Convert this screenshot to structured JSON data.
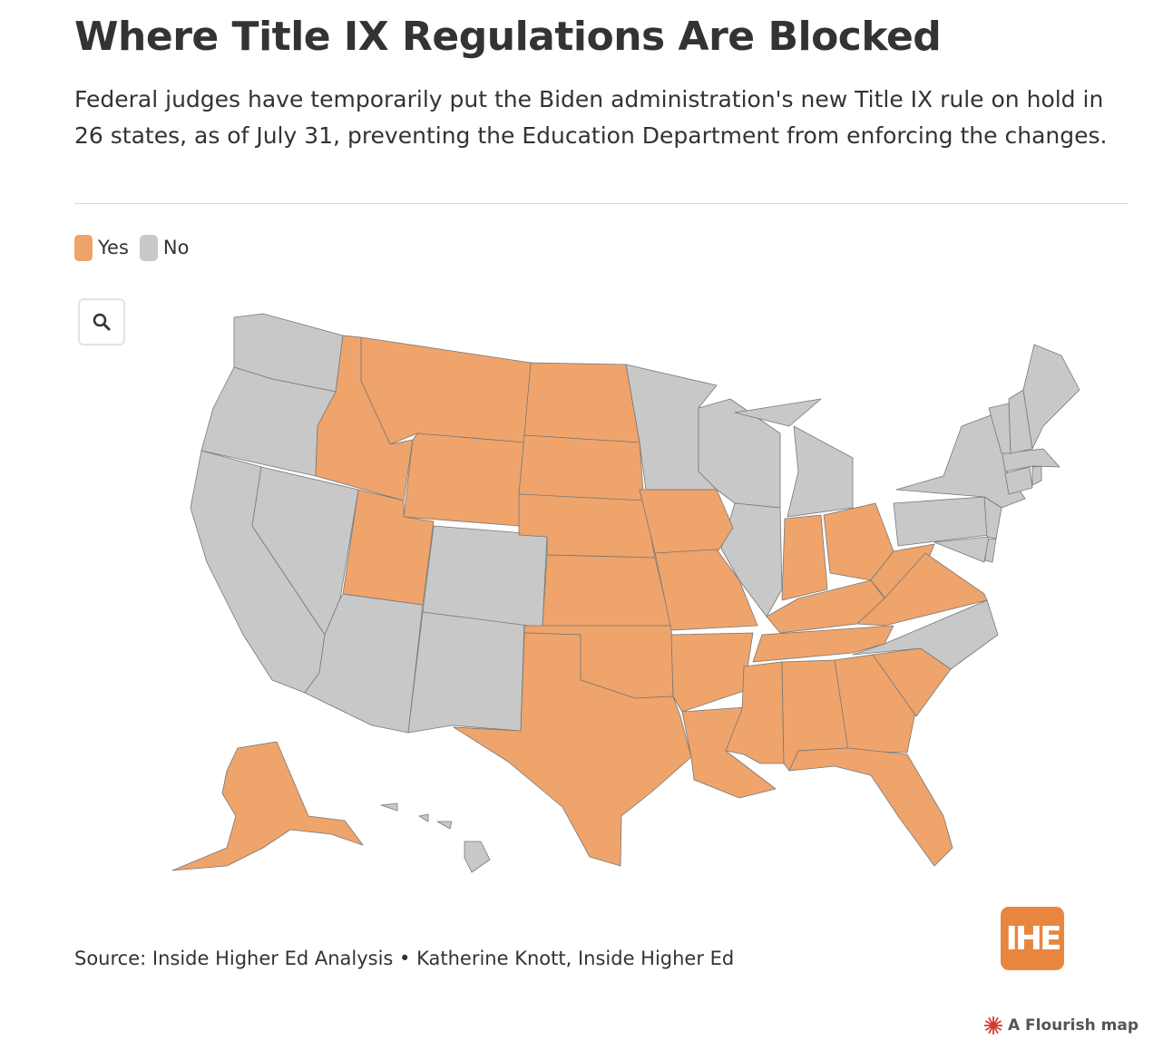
{
  "header": {
    "title": "Where Title IX Regulations Are Blocked",
    "subtitle": "Federal judges have temporarily put the Biden administration's new Title IX rule on hold in 26 states, as of July 31, preventing the Education Department from enforcing the changes."
  },
  "legend": {
    "items": [
      {
        "label": "Yes",
        "color": "#eea46b"
      },
      {
        "label": "No",
        "color": "#c8c8c8"
      }
    ]
  },
  "map": {
    "zoom_icon": "search-icon",
    "border_color": "#777777",
    "states_blocked": [
      "Alaska",
      "Montana",
      "Idaho",
      "Wyoming",
      "Utah",
      "North Dakota",
      "South Dakota",
      "Nebraska",
      "Kansas",
      "Oklahoma",
      "Texas",
      "Iowa",
      "Missouri",
      "Arkansas",
      "Louisiana",
      "Mississippi",
      "Alabama",
      "Georgia",
      "Florida",
      "South Carolina",
      "Tennessee",
      "Kentucky",
      "Indiana",
      "Ohio",
      "West Virginia",
      "Virginia"
    ],
    "states_not_blocked": [
      "Washington",
      "Oregon",
      "California",
      "Nevada",
      "Arizona",
      "New Mexico",
      "Colorado",
      "Minnesota",
      "Wisconsin",
      "Illinois",
      "Michigan",
      "Pennsylvania",
      "New York",
      "New Jersey",
      "Delaware",
      "Maryland",
      "North Carolina",
      "Connecticut",
      "Rhode Island",
      "Massachusetts",
      "Vermont",
      "New Hampshire",
      "Maine",
      "Hawaii"
    ]
  },
  "footer": {
    "source": "Source: Inside Higher Ed Analysis • Katherine Knott, Inside Higher Ed",
    "logo_text": "IHE",
    "logo_color": "#e8863f",
    "flourish_label": "A Flourish map",
    "flourish_icon": "flourish-star-icon",
    "flourish_color": "#d63a2f"
  }
}
